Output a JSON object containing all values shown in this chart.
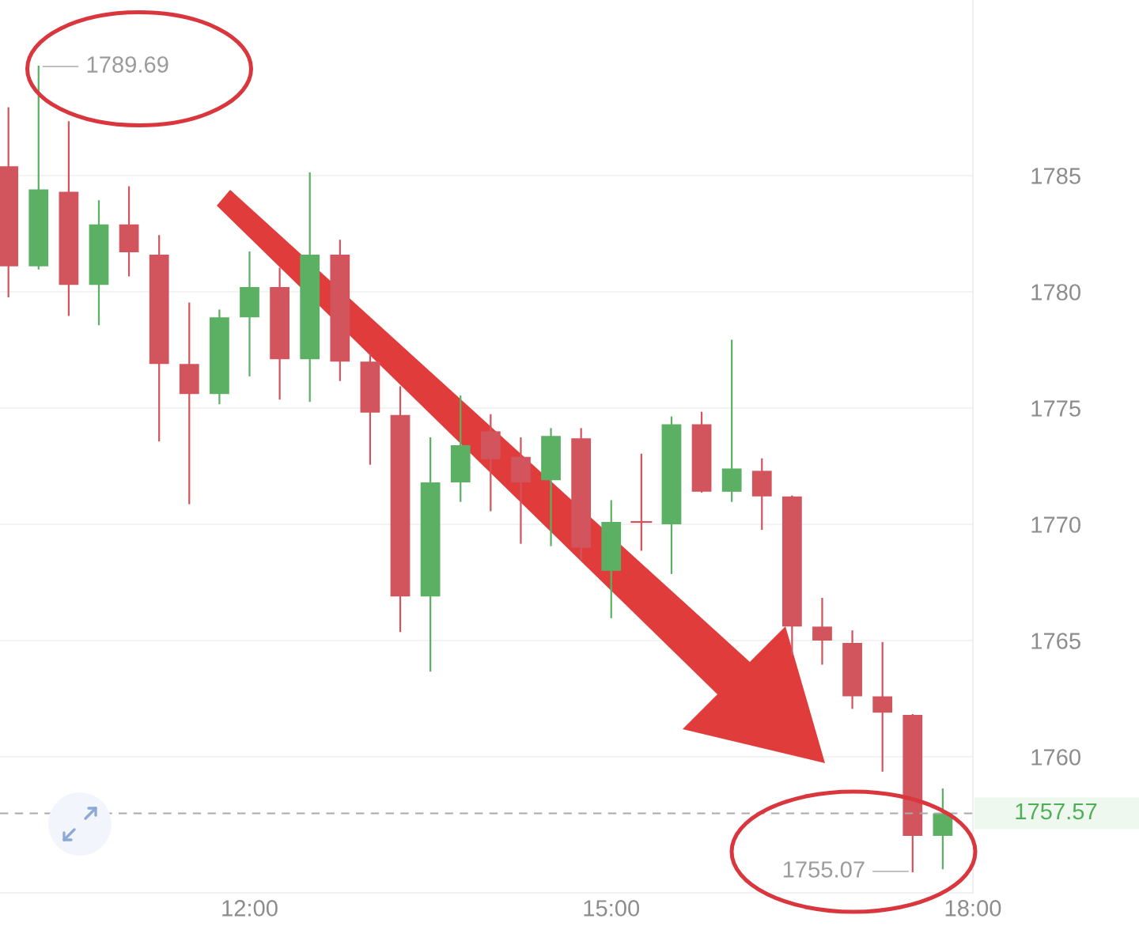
{
  "chart_data": {
    "type": "candlestick",
    "x": [
      10,
      10.25,
      10.5,
      10.75,
      11,
      11.25,
      11.5,
      11.75,
      12,
      12.25,
      12.5,
      12.75,
      13,
      13.25,
      13.5,
      13.75,
      14,
      14.25,
      14.5,
      14.75,
      15,
      15.25,
      15.5,
      15.75,
      16,
      16.25,
      16.5,
      16.75,
      17,
      17.25,
      17.5,
      17.75
    ],
    "ohlc": [
      [
        1785.4,
        1787.9,
        1779.8,
        1781.1
      ],
      [
        1781.1,
        1789.69,
        1781.0,
        1784.4
      ],
      [
        1784.3,
        1787.3,
        1779.0,
        1780.3
      ],
      [
        1780.3,
        1783.9,
        1778.6,
        1782.9
      ],
      [
        1782.9,
        1784.5,
        1780.7,
        1781.7
      ],
      [
        1781.6,
        1782.4,
        1773.6,
        1776.9
      ],
      [
        1776.9,
        1779.5,
        1770.9,
        1775.6
      ],
      [
        1775.6,
        1779.2,
        1775.2,
        1778.9
      ],
      [
        1778.9,
        1781.7,
        1776.4,
        1780.2
      ],
      [
        1780.2,
        1781.0,
        1775.4,
        1777.1
      ],
      [
        1777.1,
        1785.1,
        1775.3,
        1781.6
      ],
      [
        1781.6,
        1782.2,
        1776.2,
        1777.0
      ],
      [
        1777.0,
        1777.3,
        1772.6,
        1774.8
      ],
      [
        1774.7,
        1775.9,
        1765.4,
        1766.9
      ],
      [
        1766.9,
        1773.7,
        1763.7,
        1771.8
      ],
      [
        1771.8,
        1775.5,
        1771.0,
        1773.4
      ],
      [
        1774.0,
        1774.7,
        1770.6,
        1772.8
      ],
      [
        1772.9,
        1773.7,
        1769.2,
        1771.8
      ],
      [
        1771.9,
        1774.1,
        1769.1,
        1773.8
      ],
      [
        1773.7,
        1774.1,
        1768.5,
        1769.0
      ],
      [
        1768.0,
        1771.0,
        1766.0,
        1770.1
      ],
      [
        1770.1,
        1773.0,
        1768.9,
        1770.1
      ],
      [
        1770.0,
        1774.6,
        1767.9,
        1774.3
      ],
      [
        1774.3,
        1774.8,
        1771.4,
        1771.4
      ],
      [
        1771.4,
        1777.9,
        1771.0,
        1772.4
      ],
      [
        1772.3,
        1772.8,
        1769.8,
        1771.2
      ],
      [
        1771.2,
        1771.2,
        1764.4,
        1765.6
      ],
      [
        1765.6,
        1766.8,
        1764.0,
        1765.0
      ],
      [
        1764.9,
        1765.4,
        1762.1,
        1762.6
      ],
      [
        1762.6,
        1764.9,
        1759.4,
        1761.9
      ],
      [
        1761.8,
        1761.8,
        1755.07,
        1756.6
      ],
      [
        1756.6,
        1758.6,
        1755.2,
        1757.57
      ]
    ],
    "colors": [
      "#d2545c",
      "#5cb064",
      "#d2545c",
      "#5cb064",
      "#d2545c",
      "#d2545c",
      "#d2545c",
      "#5cb064",
      "#5cb064",
      "#d2545c",
      "#5cb064",
      "#d2545c",
      "#d2545c",
      "#d2545c",
      "#5cb064",
      "#5cb064",
      "#d2545c",
      "#d2545c",
      "#5cb064",
      "#d2545c",
      "#5cb064",
      "#d2545c",
      "#5cb064",
      "#d2545c",
      "#5cb064",
      "#d2545c",
      "#d2545c",
      "#d2545c",
      "#d2545c",
      "#d2545c",
      "#d2545c",
      "#5cb064"
    ],
    "xlim": [
      9.93,
      18.0
    ],
    "ylim": [
      1754.15,
      1792.55
    ],
    "xticks": [
      {
        "value": 12,
        "label": "12:00"
      },
      {
        "value": 15,
        "label": "15:00"
      },
      {
        "value": 18,
        "label": "18:00"
      }
    ],
    "yticks": [
      1760,
      1765,
      1770,
      1775,
      1780,
      1785
    ],
    "grid": "y",
    "annotations": [
      {
        "text": "1789.69",
        "x": 10.25,
        "y": 1789.69
      },
      {
        "text": "1755.07",
        "x": 17.5,
        "y": 1755.07
      }
    ],
    "ref_lines": [
      {
        "axis": "y",
        "value": 1757.57,
        "label": "1757.57",
        "color": "#aaaaaa",
        "line_style": "dashed"
      }
    ]
  }
}
